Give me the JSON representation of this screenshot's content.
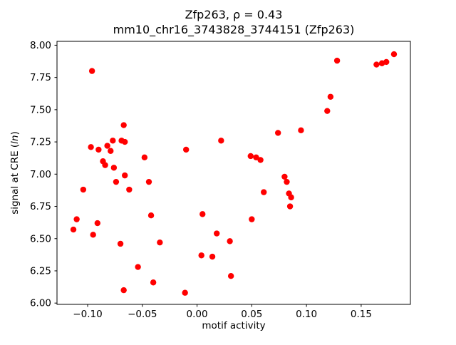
{
  "figure": {
    "background_color": "#ffffff",
    "axes_edge_color": "#000000"
  },
  "chart_data": {
    "type": "scatter",
    "title_lines": [
      "Zfp263, ρ = 0.43",
      "mm10_chr16_3743828_3744151 (Zfp263)"
    ],
    "xlabel": "motif activity",
    "ylabel_parts": [
      "signal at CRE (",
      "ln",
      ")"
    ],
    "xlim": [
      -0.128,
      0.195
    ],
    "ylim": [
      5.99,
      8.03
    ],
    "x_ticks": [
      -0.1,
      -0.05,
      0.0,
      0.05,
      0.1,
      0.15
    ],
    "x_tick_labels": [
      "−0.10",
      "−0.05",
      "0.00",
      "0.05",
      "0.10",
      "0.15"
    ],
    "y_ticks": [
      6.0,
      6.25,
      6.5,
      6.75,
      7.0,
      7.25,
      7.5,
      7.75,
      8.0
    ],
    "y_tick_labels": [
      "6.00",
      "6.25",
      "6.50",
      "6.75",
      "7.00",
      "7.25",
      "7.50",
      "7.75",
      "8.00"
    ],
    "marker_color": "#ff0000",
    "marker_radius": 4.2,
    "grid": false,
    "legend": null,
    "points": [
      [
        -0.113,
        6.57
      ],
      [
        -0.11,
        6.65
      ],
      [
        -0.104,
        6.88
      ],
      [
        -0.096,
        7.8
      ],
      [
        -0.097,
        7.21
      ],
      [
        -0.09,
        7.19
      ],
      [
        -0.091,
        6.62
      ],
      [
        -0.095,
        6.53
      ],
      [
        -0.086,
        7.1
      ],
      [
        -0.084,
        7.07
      ],
      [
        -0.082,
        7.22
      ],
      [
        -0.079,
        7.18
      ],
      [
        -0.077,
        7.26
      ],
      [
        -0.076,
        7.05
      ],
      [
        -0.074,
        6.94
      ],
      [
        -0.069,
        7.26
      ],
      [
        -0.067,
        7.38
      ],
      [
        -0.066,
        7.25
      ],
      [
        -0.066,
        6.99
      ],
      [
        -0.07,
        6.46
      ],
      [
        -0.067,
        6.1
      ],
      [
        -0.062,
        6.88
      ],
      [
        -0.054,
        6.28
      ],
      [
        -0.048,
        7.13
      ],
      [
        -0.044,
        6.94
      ],
      [
        -0.042,
        6.68
      ],
      [
        -0.04,
        6.16
      ],
      [
        -0.034,
        6.47
      ],
      [
        -0.011,
        6.08
      ],
      [
        -0.01,
        7.19
      ],
      [
        0.005,
        6.69
      ],
      [
        0.004,
        6.37
      ],
      [
        0.014,
        6.36
      ],
      [
        0.018,
        6.54
      ],
      [
        0.022,
        7.26
      ],
      [
        0.03,
        6.48
      ],
      [
        0.031,
        6.21
      ],
      [
        0.049,
        7.14
      ],
      [
        0.054,
        7.13
      ],
      [
        0.058,
        7.11
      ],
      [
        0.05,
        6.65
      ],
      [
        0.061,
        6.86
      ],
      [
        0.074,
        7.32
      ],
      [
        0.08,
        6.98
      ],
      [
        0.082,
        6.94
      ],
      [
        0.084,
        6.85
      ],
      [
        0.086,
        6.82
      ],
      [
        0.085,
        6.75
      ],
      [
        0.095,
        7.34
      ],
      [
        0.119,
        7.49
      ],
      [
        0.122,
        7.6
      ],
      [
        0.128,
        7.88
      ],
      [
        0.164,
        7.85
      ],
      [
        0.169,
        7.86
      ],
      [
        0.173,
        7.87
      ],
      [
        0.18,
        7.93
      ]
    ]
  }
}
